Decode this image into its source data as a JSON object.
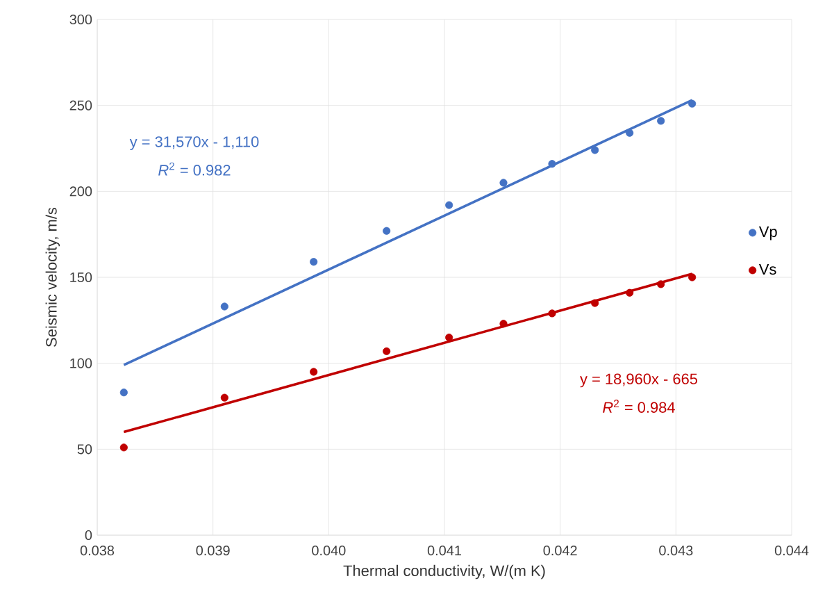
{
  "chart_data": {
    "type": "scatter",
    "xlabel": "Thermal conductivity, W/(m K)",
    "ylabel": "Seismic velocity, m/s",
    "xlim": [
      0.038,
      0.044
    ],
    "ylim": [
      0,
      300
    ],
    "xticks": [
      {
        "value": 0.038,
        "label": "0.038"
      },
      {
        "value": 0.039,
        "label": "0.039"
      },
      {
        "value": 0.04,
        "label": "0.040"
      },
      {
        "value": 0.041,
        "label": "0.041"
      },
      {
        "value": 0.042,
        "label": "0.042"
      },
      {
        "value": 0.043,
        "label": "0.043"
      },
      {
        "value": 0.044,
        "label": "0.044"
      }
    ],
    "yticks": [
      0,
      50,
      100,
      150,
      200,
      250,
      300
    ],
    "grid": true,
    "legend": "right",
    "series": [
      {
        "name": "Vp",
        "marker": "circle",
        "color": "#4472c4",
        "x": [
          0.03823,
          0.0391,
          0.03987,
          0.0405,
          0.04104,
          0.04151,
          0.04193,
          0.0423,
          0.0426,
          0.04287,
          0.04314
        ],
        "values": [
          83,
          133,
          159,
          177,
          192,
          205,
          216,
          224,
          234,
          241,
          251
        ]
      },
      {
        "name": "Vs",
        "marker": "circle",
        "color": "#c00000",
        "x": [
          0.03823,
          0.0391,
          0.03987,
          0.0405,
          0.04104,
          0.04151,
          0.04193,
          0.0423,
          0.0426,
          0.04287,
          0.04314
        ],
        "values": [
          51,
          80,
          95,
          107,
          115,
          123,
          129,
          135,
          141,
          146,
          150
        ]
      },
      {
        "type": "line",
        "marker": "none",
        "color": "#4472c4",
        "x": [
          0.03823,
          0.04314
        ],
        "values": [
          99,
          253
        ]
      },
      {
        "type": "line",
        "marker": "none",
        "color": "#c00000",
        "x": [
          0.03823,
          0.04314
        ],
        "values": [
          60,
          152
        ]
      }
    ],
    "annotations": [
      "y = 31,570x - 1,110",
      "*R*$^{2}$ = 0.982",
      "y = 18,960x - 665",
      "*R*$^{2}$ = 0.984"
    ]
  }
}
